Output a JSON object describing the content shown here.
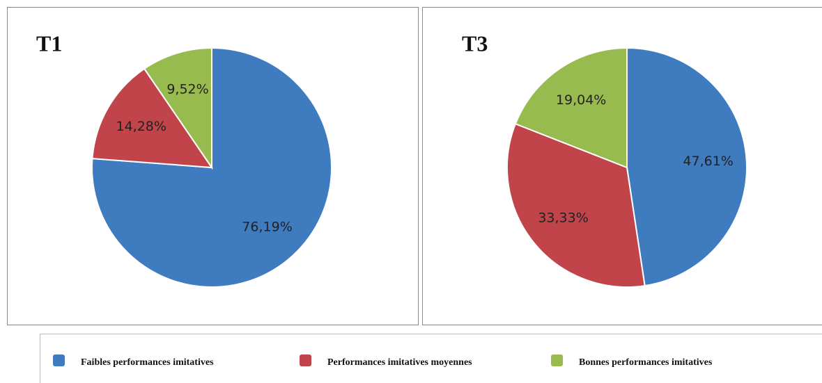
{
  "chart_data": [
    {
      "type": "pie",
      "title": "T1",
      "values": [
        76.19,
        14.28,
        9.52
      ],
      "value_labels": [
        "76,19%",
        "14,28%",
        "9,52%"
      ]
    },
    {
      "type": "pie",
      "title": "T3",
      "values": [
        47.61,
        33.33,
        19.04
      ],
      "value_labels": [
        "47,61%",
        "33,33%",
        "19,04%"
      ]
    }
  ],
  "legend": {
    "items": [
      {
        "name": "Faibles performances imitatives",
        "color": "#3f7bbf"
      },
      {
        "name": "Performances imitatives moyennes",
        "color": "#c0444a"
      },
      {
        "name": "Bonnes performances imitatives",
        "color": "#98bb4f"
      }
    ]
  }
}
